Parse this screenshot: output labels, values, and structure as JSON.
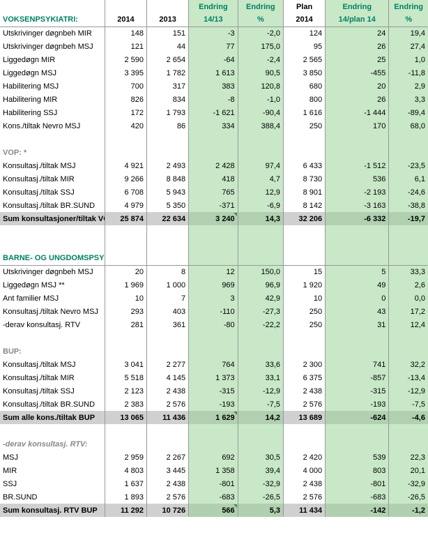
{
  "colors": {
    "green_bg": "#c8e8c8",
    "header_green": "#008060",
    "section_grey": "#888888",
    "sum_bg": "#d0d0d0",
    "sum_green_bg": "#b0d0b0",
    "border": "#999999"
  },
  "columns": [
    {
      "key": "label",
      "class": "col-label"
    },
    {
      "key": "c2014",
      "class": "col-2014"
    },
    {
      "key": "c2013",
      "class": "col-2013"
    },
    {
      "key": "e1413",
      "class": "col-e1413",
      "green": true
    },
    {
      "key": "epct",
      "class": "col-epct",
      "green": true
    },
    {
      "key": "plan",
      "class": "col-plan"
    },
    {
      "key": "eplan",
      "class": "col-eplan",
      "green": true
    },
    {
      "key": "epct2",
      "class": "col-epct2",
      "green": true
    }
  ],
  "header1": [
    "",
    "",
    "",
    "Endring",
    "Endring",
    "Plan",
    "Endring",
    "Endring"
  ],
  "header2": [
    "VOKSENPSYKIATRI:",
    "2014",
    "2013",
    "14/13",
    "%",
    "2014",
    "14/plan 14",
    "%"
  ],
  "rows": [
    {
      "type": "data",
      "topborder": true,
      "cells": [
        "Utskrivinger døgnbeh MIR",
        "148",
        "151",
        "-3",
        "-2,0",
        "124",
        "24",
        "19,4"
      ]
    },
    {
      "type": "data",
      "cells": [
        "Utskrivinger døgnbeh MSJ",
        "121",
        "44",
        "77",
        "175,0",
        "95",
        "26",
        "27,4"
      ]
    },
    {
      "type": "data",
      "cells": [
        "Liggedøgn MIR",
        "2 590",
        "2 654",
        "-64",
        "-2,4",
        "2 565",
        "25",
        "1,0"
      ]
    },
    {
      "type": "data",
      "cells": [
        "Liggedøgn MSJ",
        "3 395",
        "1 782",
        "1 613",
        "90,5",
        "3 850",
        "-455",
        "-11,8"
      ]
    },
    {
      "type": "data",
      "cells": [
        "Habilitering MSJ",
        "700",
        "317",
        "383",
        "120,8",
        "680",
        "20",
        "2,9"
      ]
    },
    {
      "type": "data",
      "cells": [
        "Habilitering MIR",
        "826",
        "834",
        "-8",
        "-1,0",
        "800",
        "26",
        "3,3"
      ]
    },
    {
      "type": "data",
      "cells": [
        "Habilitering SSJ",
        "172",
        "1 793",
        "-1 621",
        "-90,4",
        "1 616",
        "-1 444",
        "-89,4"
      ]
    },
    {
      "type": "data",
      "cells": [
        "Kons./tiltak Nevro MSJ",
        "420",
        "86",
        "334",
        "388,4",
        "250",
        "170",
        "68,0"
      ]
    },
    {
      "type": "blank"
    },
    {
      "type": "section",
      "label": "VOP: *"
    },
    {
      "type": "data",
      "cells": [
        "Konsultasj./tiltak MSJ",
        "4 921",
        "2 493",
        "2 428",
        "97,4",
        "6 433",
        "-1 512",
        "-23,5"
      ]
    },
    {
      "type": "data",
      "cells": [
        "Konsultasj./tiltak MIR",
        "9 266",
        "8 848",
        "418",
        "4,7",
        "8 730",
        "536",
        "6,1"
      ]
    },
    {
      "type": "data",
      "cells": [
        "Konsultasj./tiltak SSJ",
        "6 708",
        "5 943",
        "765",
        "12,9",
        "8 901",
        "-2 193",
        "-24,6"
      ]
    },
    {
      "type": "data",
      "cells": [
        "Konsultasj./tiltak BR.SUND",
        "4 979",
        "5 350",
        "-371",
        "-6,9",
        "8 142",
        "-3 163",
        "-38,8"
      ]
    },
    {
      "type": "sum",
      "triangle": true,
      "cells": [
        "Sum konsultasjoner/tiltak VOP",
        "25 874",
        "22 634",
        "3 240",
        "14,3",
        "32 206",
        "-6 332",
        "-19,7"
      ]
    },
    {
      "type": "blank"
    },
    {
      "type": "blank"
    },
    {
      "type": "section-green",
      "label": "BARNE- OG UNGDOMSPSYK.:"
    },
    {
      "type": "data",
      "topborder": true,
      "cells": [
        "Utskrivinger døgnbeh MSJ",
        "20",
        "8",
        "12",
        "150,0",
        "15",
        "5",
        "33,3"
      ]
    },
    {
      "type": "data",
      "cells": [
        "Liggedøgn MSJ **",
        "1 969",
        "1 000",
        "969",
        "96,9",
        "1 920",
        "49",
        "2,6"
      ]
    },
    {
      "type": "data",
      "cells": [
        "Ant familier MSJ",
        "10",
        "7",
        "3",
        "42,9",
        "10",
        "0",
        "0,0"
      ]
    },
    {
      "type": "data",
      "cells": [
        "Konsultasj./tiltak Nevro MSJ",
        "293",
        "403",
        "-110",
        "-27,3",
        "250",
        "43",
        "17,2"
      ]
    },
    {
      "type": "data",
      "cells": [
        "  -derav konsultasj. RTV",
        "281",
        "361",
        "-80",
        "-22,2",
        "250",
        "31",
        "12,4"
      ]
    },
    {
      "type": "blank"
    },
    {
      "type": "section",
      "label": "BUP:"
    },
    {
      "type": "data",
      "cells": [
        "Konsultasj./tiltak MSJ",
        "3 041",
        "2 277",
        "764",
        "33,6",
        "2 300",
        "741",
        "32,2"
      ]
    },
    {
      "type": "data",
      "cells": [
        "Konsultasj./tiltak MIR",
        "5 518",
        "4 145",
        "1 373",
        "33,1",
        "6 375",
        "-857",
        "-13,4"
      ]
    },
    {
      "type": "data",
      "cells": [
        "Konsultasj./tiltak SSJ",
        "2 123",
        "2 438",
        "-315",
        "-12,9",
        "2 438",
        "-315",
        "-12,9"
      ]
    },
    {
      "type": "data",
      "cells": [
        "Konsultasj./tiltak BR.SUND",
        "2 383",
        "2 576",
        "-193",
        "-7,5",
        "2 576",
        "-193",
        "-7,5"
      ]
    },
    {
      "type": "sum",
      "triangle": true,
      "cells": [
        "Sum alle kons./tiltak BUP",
        "13 065",
        "11 436",
        "1 629",
        "14,2",
        "13 689",
        "-624",
        "-4,6"
      ]
    },
    {
      "type": "blank"
    },
    {
      "type": "section-sub",
      "label": "  -derav konsultasj. RTV:"
    },
    {
      "type": "data",
      "cells": [
        "MSJ",
        "2 959",
        "2 267",
        "692",
        "30,5",
        "2 420",
        "539",
        "22,3"
      ]
    },
    {
      "type": "data",
      "cells": [
        "MIR",
        "4 803",
        "3 445",
        "1 358",
        "39,4",
        "4 000",
        "803",
        "20,1"
      ]
    },
    {
      "type": "data",
      "cells": [
        "SSJ",
        "1 637",
        "2 438",
        "-801",
        "-32,9",
        "2 438",
        "-801",
        "-32,9"
      ]
    },
    {
      "type": "data",
      "cells": [
        "BR.SUND",
        "1 893",
        "2 576",
        "-683",
        "-26,5",
        "2 576",
        "-683",
        "-26,5"
      ]
    },
    {
      "type": "sum",
      "triangle": true,
      "cells": [
        "Sum konsultasj. RTV BUP",
        "11 292",
        "10 726",
        "566",
        "5,3",
        "11 434",
        "-142",
        "-1,2"
      ]
    }
  ]
}
